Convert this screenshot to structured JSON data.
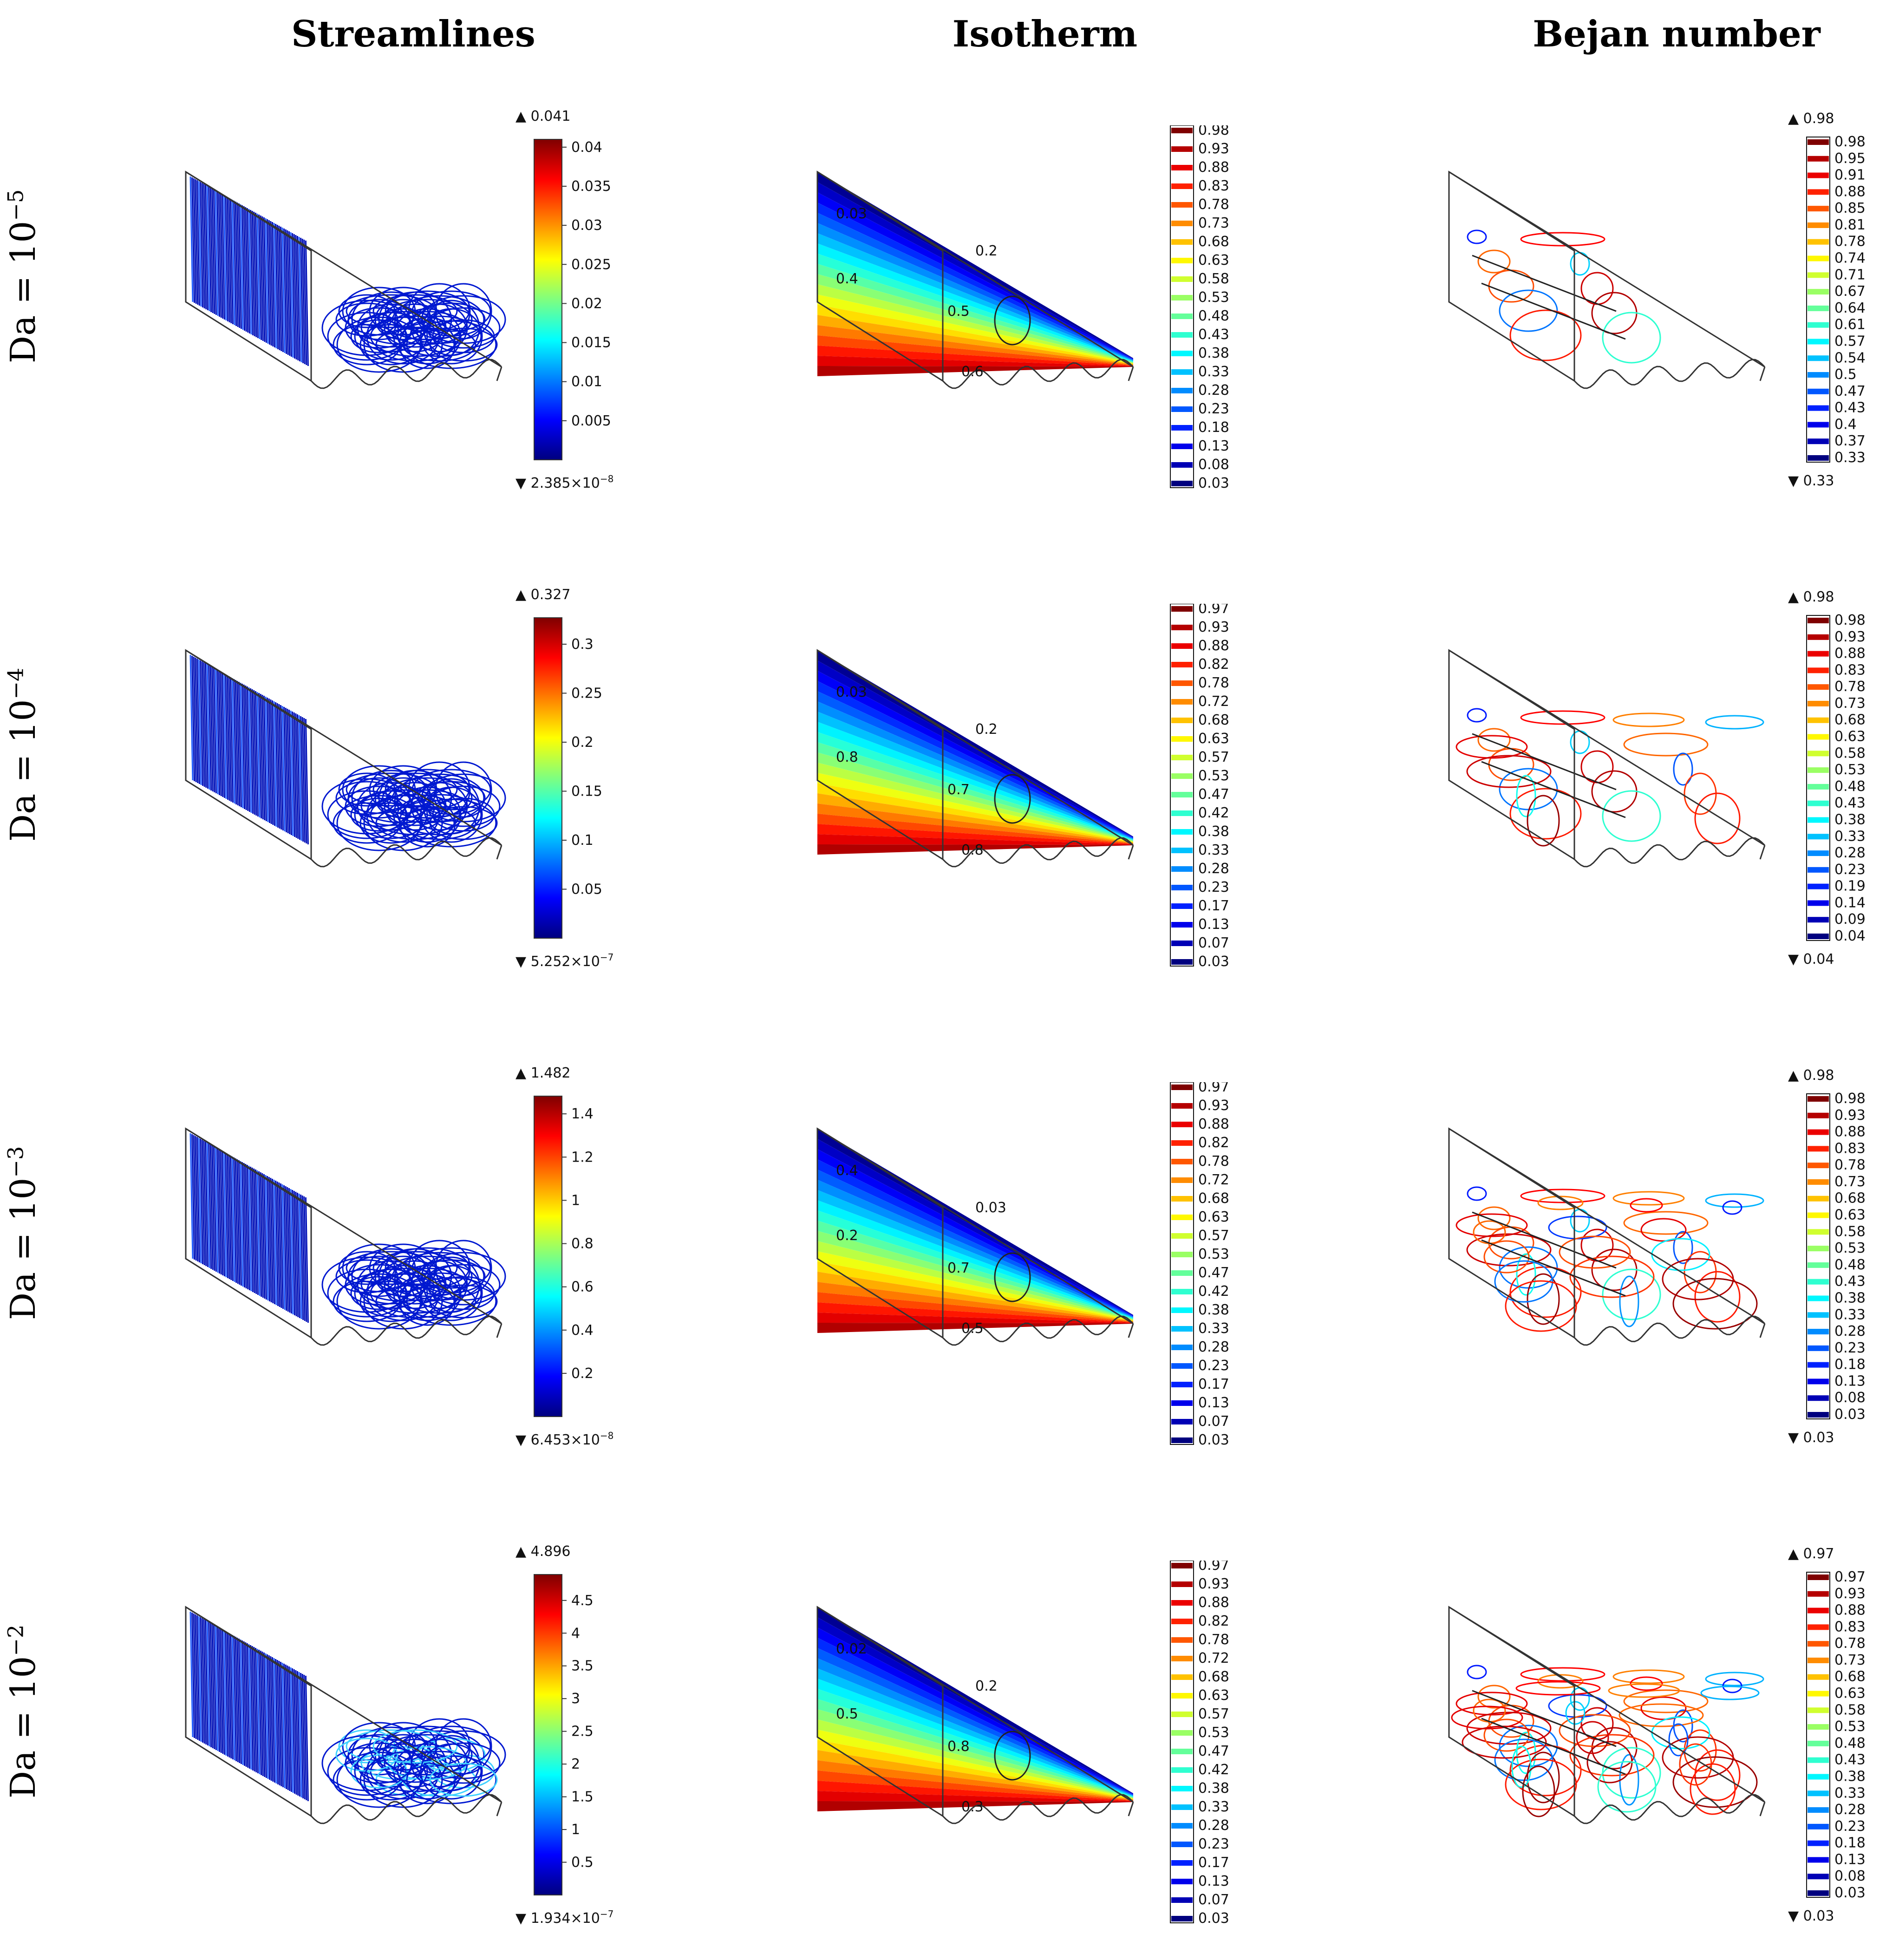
{
  "columns": [
    "Streamlines",
    "Isotherm",
    "Bejan number"
  ],
  "rows": [
    {
      "da_label": "Da = 10",
      "da_exp": "−5",
      "streamlines": {
        "max": "0.041",
        "min": "2.385×10",
        "min_exp": "−8",
        "ticks": [
          "0.04",
          "0.035",
          "0.03",
          "0.025",
          "0.02",
          "0.015",
          "0.01",
          "0.005"
        ]
      },
      "isotherm": {
        "legend": [
          "0.98",
          "0.93",
          "0.88",
          "0.83",
          "0.78",
          "0.73",
          "0.68",
          "0.63",
          "0.58",
          "0.53",
          "0.48",
          "0.43",
          "0.38",
          "0.33",
          "0.28",
          "0.23",
          "0.18",
          "0.13",
          "0.08",
          "0.03"
        ],
        "contour_labels": [
          "0.03",
          "0.4",
          "0.2",
          "0.5",
          "0.6"
        ]
      },
      "bejan": {
        "max": "0.98",
        "min": "0.33",
        "legend": [
          "0.98",
          "0.95",
          "0.91",
          "0.88",
          "0.85",
          "0.81",
          "0.78",
          "0.74",
          "0.71",
          "0.67",
          "0.64",
          "0.61",
          "0.57",
          "0.54",
          "0.5",
          "0.47",
          "0.43",
          "0.4",
          "0.37",
          "0.33"
        ]
      }
    },
    {
      "da_label": "Da = 10",
      "da_exp": "−4",
      "streamlines": {
        "max": "0.327",
        "min": "5.252×10",
        "min_exp": "−7",
        "ticks": [
          "0.3",
          "0.25",
          "0.2",
          "0.15",
          "0.1",
          "0.05"
        ]
      },
      "isotherm": {
        "legend": [
          "0.97",
          "0.93",
          "0.88",
          "0.82",
          "0.78",
          "0.72",
          "0.68",
          "0.63",
          "0.57",
          "0.53",
          "0.47",
          "0.42",
          "0.38",
          "0.33",
          "0.28",
          "0.23",
          "0.17",
          "0.13",
          "0.07",
          "0.03"
        ],
        "contour_labels": [
          "0.03",
          "0.8",
          "0.2",
          "0.7",
          "0.8"
        ]
      },
      "bejan": {
        "max": "0.98",
        "min": "0.04",
        "legend": [
          "0.98",
          "0.93",
          "0.88",
          "0.83",
          "0.78",
          "0.73",
          "0.68",
          "0.63",
          "0.58",
          "0.53",
          "0.48",
          "0.43",
          "0.38",
          "0.33",
          "0.28",
          "0.23",
          "0.19",
          "0.14",
          "0.09",
          "0.04"
        ]
      }
    },
    {
      "da_label": "Da = 10",
      "da_exp": "−3",
      "streamlines": {
        "max": "1.482",
        "min": "6.453×10",
        "min_exp": "−8",
        "ticks": [
          "1.4",
          "1.2",
          "1",
          "0.8",
          "0.6",
          "0.4",
          "0.2"
        ]
      },
      "isotherm": {
        "legend": [
          "0.97",
          "0.93",
          "0.88",
          "0.82",
          "0.78",
          "0.72",
          "0.68",
          "0.63",
          "0.57",
          "0.53",
          "0.47",
          "0.42",
          "0.38",
          "0.33",
          "0.28",
          "0.23",
          "0.17",
          "0.13",
          "0.07",
          "0.03"
        ],
        "contour_labels": [
          "0.4",
          "0.2",
          "0.03",
          "0.7",
          "0.5"
        ]
      },
      "bejan": {
        "max": "0.98",
        "min": "0.03",
        "legend": [
          "0.98",
          "0.93",
          "0.88",
          "0.83",
          "0.78",
          "0.73",
          "0.68",
          "0.63",
          "0.58",
          "0.53",
          "0.48",
          "0.43",
          "0.38",
          "0.33",
          "0.28",
          "0.23",
          "0.18",
          "0.13",
          "0.08",
          "0.03"
        ]
      }
    },
    {
      "da_label": "Da = 10",
      "da_exp": "−2",
      "streamlines": {
        "max": "4.896",
        "min": "1.934×10",
        "min_exp": "−7",
        "ticks": [
          "4.5",
          "4",
          "3.5",
          "3",
          "2.5",
          "2",
          "1.5",
          "1",
          "0.5"
        ]
      },
      "isotherm": {
        "legend": [
          "0.97",
          "0.93",
          "0.88",
          "0.82",
          "0.78",
          "0.72",
          "0.68",
          "0.63",
          "0.57",
          "0.53",
          "0.47",
          "0.42",
          "0.38",
          "0.33",
          "0.28",
          "0.23",
          "0.17",
          "0.13",
          "0.07",
          "0.03"
        ],
        "contour_labels": [
          "0.02",
          "0.5",
          "0.2",
          "0.8",
          "0.3"
        ]
      },
      "bejan": {
        "max": "0.97",
        "min": "0.03",
        "legend": [
          "0.97",
          "0.93",
          "0.88",
          "0.83",
          "0.78",
          "0.73",
          "0.68",
          "0.63",
          "0.58",
          "0.53",
          "0.48",
          "0.43",
          "0.38",
          "0.33",
          "0.28",
          "0.23",
          "0.18",
          "0.13",
          "0.08",
          "0.03"
        ]
      }
    }
  ],
  "colormap": [
    "#00007f",
    "#0000ff",
    "#007fff",
    "#00ffff",
    "#7fff7f",
    "#ffff00",
    "#ff7f00",
    "#ff0000",
    "#7f0000"
  ]
}
